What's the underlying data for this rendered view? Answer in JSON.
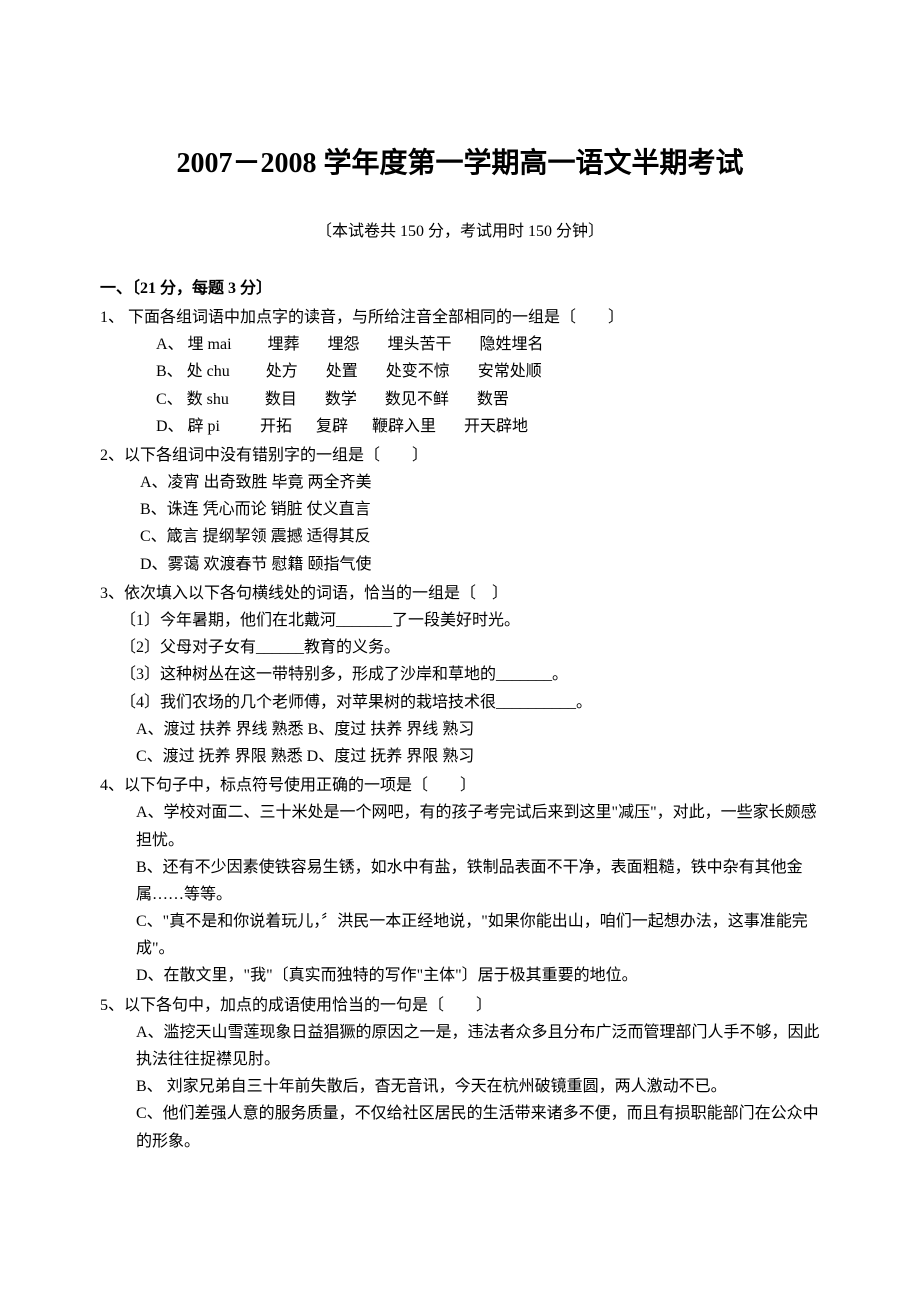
{
  "title": "2007－2008 学年度第一学期高一语文半期考试",
  "subtitle": "〔本试卷共 150 分，考试用时 150 分钟〕",
  "section1_header": "一、〔21 分，每题 3 分〕",
  "q1": {
    "stem": "1、 下面各组词语中加点字的读音，与所给注音全部相同的一组是〔　　〕",
    "a": "A、 埋 mai         埋葬       埋怨       埋头苦干       隐姓埋名",
    "b": "B、 处 chu         处方       处置       处变不惊       安常处顺",
    "c": "C、 数 shu         数目       数学       数见不鲜       数罟",
    "d": "D、 辟 pi          开拓      复辟      鞭辟入里       开天辟地"
  },
  "q2": {
    "stem": "2、以下各组词中没有错别字的一组是〔　　〕",
    "a": "A、凌宵              出奇致胜             毕竟             两全齐美",
    "b": "B、诛连              凭心而论             销脏             仗义直言",
    "c": "C、箴言              提纲挈领             震撼             适得其反",
    "d": "D、雾蔼              欢渡春节             慰籍             颐指气使"
  },
  "q3": {
    "stem": "3、依次填入以下各句横线处的词语，恰当的一组是〔　〕",
    "s1": "〔1〕今年暑期，他们在北戴河_______了一段美好时光。",
    "s2": "〔2〕父母对子女有______教育的义务。",
    "s3": "〔3〕这种树丛在这一带特别多，形成了沙岸和草地的_______。",
    "s4": "〔4〕我们农场的几个老师傅，对苹果树的栽培技术很__________。",
    "opt1": "A、渡过   扶养   界线   熟悉             B、度过   扶养   界线   熟习",
    "opt2": "C、渡过   抚养   界限   熟悉             D、度过   抚养   界限   熟习"
  },
  "q4": {
    "stem": "4、以下句子中，标点符号使用正确的一项是〔　　〕",
    "a": "A、学校对面二、三十米处是一个网吧，有的孩子考完试后来到这里\"减压\"，对此，一些家长颇感担忧。",
    "b": "B、还有不少因素使铁容易生锈，如水中有盐，铁制品表面不干净，表面粗糙，铁中杂有其他金属……等等。",
    "c": "C、\"真不是和你说着玩儿，〞洪民一本正经地说，\"如果你能出山，咱们一起想办法，这事准能完成\"。",
    "d": "D、在散文里，\"我\"〔真实而独特的写作\"主体\"〕居于极其重要的地位。"
  },
  "q5": {
    "stem": "5、以下各句中，加点的成语使用恰当的一句是〔　　〕",
    "a": "A、滥挖天山雪莲现象日益猖獗的原因之一是，违法者众多且分布广泛而管理部门人手不够，因此执法往往捉襟见肘。",
    "b": "B、 刘家兄弟自三十年前失散后，杳无音讯，今天在杭州破镜重圆，两人激动不已。",
    "c": "C、他们差强人意的服务质量，不仅给社区居民的生活带来诸多不便，而且有损职能部门在公众中的形象。"
  }
}
